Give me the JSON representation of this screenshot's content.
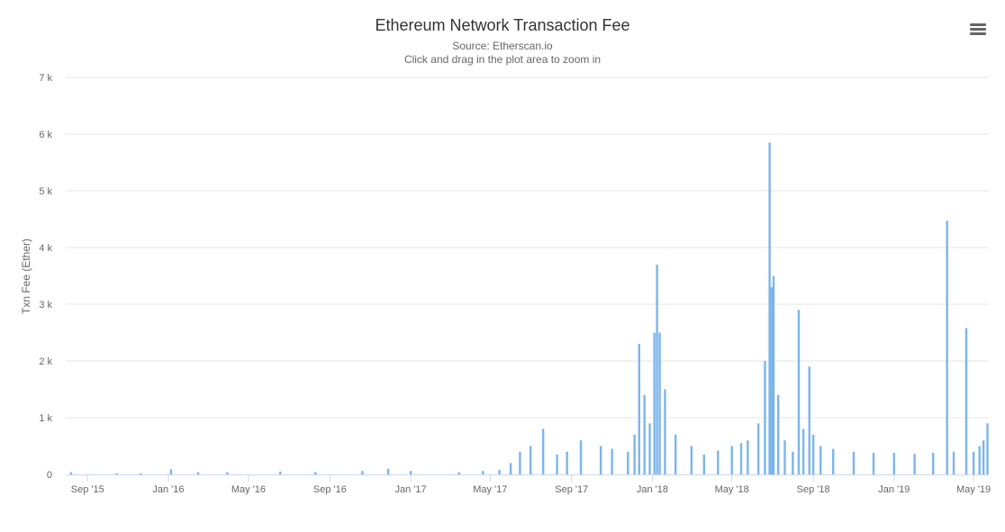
{
  "header": {
    "title": "Ethereum Network Transaction Fee",
    "subtitle": "Source: Etherscan.io",
    "hint": "Click and drag in the plot area to zoom in"
  },
  "menu": {
    "icon": "hamburger-menu-icon"
  },
  "colors": {
    "bars": "#7cb5ec",
    "grid": "#e6e6e6",
    "axis": "#ccd6eb",
    "text": "#666666"
  },
  "chart_data": {
    "type": "bar",
    "title": "Ethereum Network Transaction Fee",
    "subtitle": "Source: Etherscan.io",
    "ylabel": "Txn Fee (Ether)",
    "xlabel": "",
    "ylim": [
      0,
      7000
    ],
    "yticks": [
      "0",
      "1 k",
      "2 k",
      "3 k",
      "4 k",
      "5 k",
      "6 k",
      "7 k"
    ],
    "xlim": [
      "2015-07-30",
      "2019-05-24"
    ],
    "xticks": [
      {
        "date": "2015-09-01",
        "label": "Sep '15"
      },
      {
        "date": "2016-01-01",
        "label": "Jan '16"
      },
      {
        "date": "2016-05-01",
        "label": "May '16"
      },
      {
        "date": "2016-09-01",
        "label": "Sep '16"
      },
      {
        "date": "2017-01-01",
        "label": "Jan '17"
      },
      {
        "date": "2017-05-01",
        "label": "May '17"
      },
      {
        "date": "2017-09-01",
        "label": "Sep '17"
      },
      {
        "date": "2018-01-01",
        "label": "Jan '18"
      },
      {
        "date": "2018-05-01",
        "label": "May '18"
      },
      {
        "date": "2018-09-01",
        "label": "Sep '18"
      },
      {
        "date": "2019-01-01",
        "label": "Jan '19"
      },
      {
        "date": "2019-05-01",
        "label": "May '19"
      }
    ],
    "grid": true,
    "legend": "none",
    "series": [
      {
        "x": [
          "2015-08-07",
          "2015-10-15",
          "2015-11-20",
          "2016-01-05",
          "2016-02-15",
          "2016-03-30",
          "2016-06-18",
          "2016-08-10",
          "2016-10-20",
          "2016-11-28",
          "2017-01-01",
          "2017-03-15",
          "2017-04-20",
          "2017-05-15",
          "2017-06-01",
          "2017-06-15",
          "2017-07-01",
          "2017-07-20",
          "2017-08-10",
          "2017-08-25",
          "2017-09-15",
          "2017-10-15",
          "2017-11-01",
          "2017-11-25",
          "2017-12-05",
          "2017-12-12",
          "2017-12-20",
          "2017-12-28",
          "2018-01-04",
          "2018-01-08",
          "2018-01-12",
          "2018-01-20",
          "2018-02-05",
          "2018-03-01",
          "2018-03-20",
          "2018-04-10",
          "2018-05-01",
          "2018-05-15",
          "2018-05-25",
          "2018-06-10",
          "2018-06-20",
          "2018-06-27",
          "2018-06-30",
          "2018-07-03",
          "2018-07-10",
          "2018-07-20",
          "2018-08-01",
          "2018-08-10",
          "2018-08-17",
          "2018-08-26",
          "2018-09-01",
          "2018-09-12",
          "2018-10-01",
          "2018-11-01",
          "2018-12-01",
          "2019-01-01",
          "2019-02-01",
          "2019-03-01",
          "2019-03-22",
          "2019-04-01",
          "2019-04-20",
          "2019-05-01",
          "2019-05-10",
          "2019-05-16",
          "2019-05-22"
        ],
        "values": [
          40,
          20,
          20,
          90,
          40,
          40,
          50,
          40,
          60,
          100,
          60,
          40,
          60,
          80,
          200,
          400,
          500,
          800,
          350,
          400,
          600,
          500,
          450,
          400,
          700,
          2300,
          1400,
          900,
          2500,
          3700,
          2500,
          1500,
          700,
          500,
          350,
          420,
          500,
          550,
          600,
          900,
          2000,
          5850,
          3300,
          3500,
          1400,
          600,
          400,
          2900,
          800,
          1900,
          700,
          500,
          450,
          400,
          380,
          380,
          360,
          380,
          4470,
          400,
          2580,
          400,
          500,
          600,
          900
        ]
      }
    ]
  }
}
